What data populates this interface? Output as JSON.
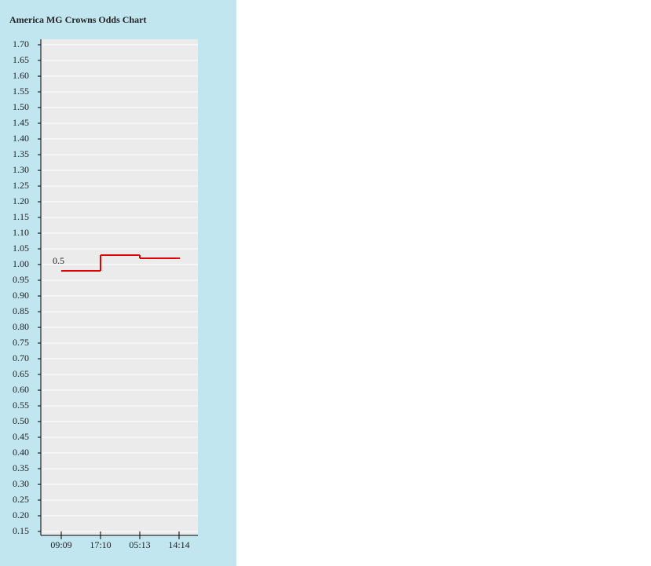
{
  "chart_data": {
    "type": "step",
    "title": "America MG Crowns Odds Chart",
    "categories": [
      "09:09",
      "17:10",
      "05:13",
      "14:14"
    ],
    "series": [
      {
        "color": "#e00000",
        "values": [
          0.98,
          1.03,
          1.02,
          1.02
        ]
      }
    ],
    "annotation": "0.5",
    "ylim": [
      0.15,
      1.7
    ],
    "yticks": [
      0.15,
      0.2,
      0.25,
      0.3,
      0.35,
      0.4,
      0.45,
      0.5,
      0.55,
      0.6,
      0.65,
      0.7,
      0.75,
      0.8,
      0.85,
      0.9,
      0.95,
      1.0,
      1.05,
      1.1,
      1.15,
      1.2,
      1.25,
      1.3,
      1.35,
      1.4,
      1.45,
      1.5,
      1.55,
      1.6,
      1.65,
      1.7
    ],
    "ytick_labels": [
      "0.15",
      "0.20",
      "0.25",
      "0.30",
      "0.35",
      "0.40",
      "0.45",
      "0.50",
      "0.55",
      "0.60",
      "0.65",
      "0.70",
      "0.75",
      "0.80",
      "0.85",
      "0.90",
      "0.95",
      "1.00",
      "1.05",
      "1.10",
      "1.15",
      "1.20",
      "1.25",
      "1.30",
      "1.35",
      "1.40",
      "1.45",
      "1.50",
      "1.55",
      "1.60",
      "1.65",
      "1.70"
    ],
    "grid": true
  }
}
